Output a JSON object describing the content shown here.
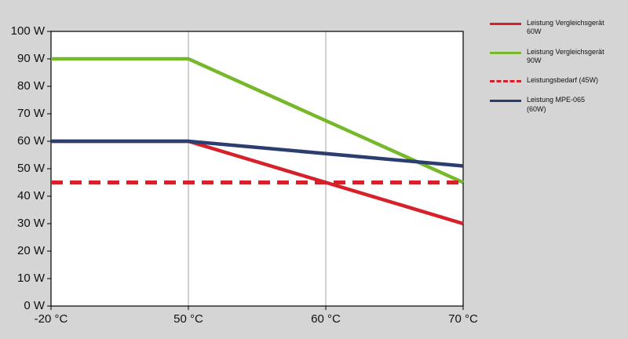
{
  "chart_data": {
    "type": "line",
    "title": "",
    "xlabel": "",
    "ylabel": "",
    "x_tick_labels": [
      "-20 °C",
      "50 °C",
      "60 °C",
      "70 °C"
    ],
    "y_tick_labels": [
      "0 W",
      "10 W",
      "20 W",
      "30 W",
      "40 W",
      "50 W",
      "60 W",
      "70 W",
      "80 W",
      "90 W",
      "100 W"
    ],
    "ylim": [
      0,
      100
    ],
    "y_step": 10,
    "grid": "vertical-only",
    "legend_position": "right",
    "plot_background": "#ffffff",
    "page_background": "#d5d5d5",
    "gridline_color": "#a3a3a3",
    "axis_color": "#000000",
    "series": [
      {
        "name": "Leistung Vergleichsgerät 60W",
        "color": "#d6212a",
        "style": "solid",
        "points": [
          [
            0,
            60
          ],
          [
            1,
            60
          ],
          [
            3,
            30
          ]
        ]
      },
      {
        "name": "Leistung Vergleichsgerät 90W",
        "color": "#76b82a",
        "style": "solid",
        "points": [
          [
            0,
            90
          ],
          [
            1,
            90
          ],
          [
            3,
            45
          ]
        ]
      },
      {
        "name": "Leistungsbedarf (45W)",
        "color": "#d6212a",
        "style": "dashed",
        "points": [
          [
            0,
            45
          ],
          [
            3,
            45
          ]
        ]
      },
      {
        "name": "Leistung MPE-065 (60W)",
        "color": "#2c3e6f",
        "style": "solid",
        "points": [
          [
            0,
            60
          ],
          [
            1,
            60
          ],
          [
            3,
            51
          ]
        ]
      }
    ]
  }
}
